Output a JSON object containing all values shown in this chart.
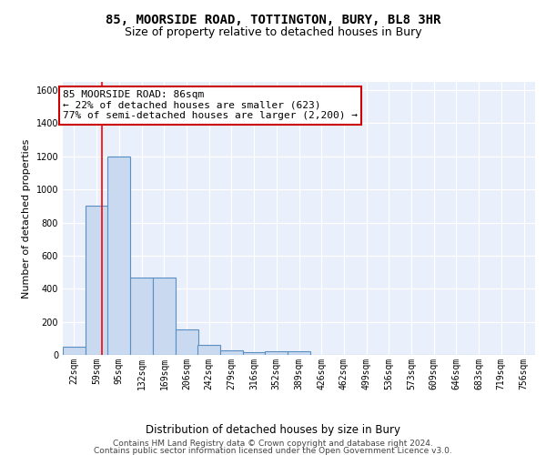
{
  "title1": "85, MOORSIDE ROAD, TOTTINGTON, BURY, BL8 3HR",
  "title2": "Size of property relative to detached houses in Bury",
  "xlabel": "Distribution of detached houses by size in Bury",
  "ylabel": "Number of detached properties",
  "categories": [
    "22sqm",
    "59sqm",
    "95sqm",
    "132sqm",
    "169sqm",
    "206sqm",
    "242sqm",
    "279sqm",
    "316sqm",
    "352sqm",
    "389sqm",
    "426sqm",
    "462sqm",
    "499sqm",
    "536sqm",
    "573sqm",
    "609sqm",
    "646sqm",
    "683sqm",
    "719sqm",
    "756sqm"
  ],
  "bin_edges": [
    22,
    59,
    95,
    132,
    169,
    206,
    242,
    279,
    316,
    352,
    389,
    426,
    462,
    499,
    536,
    573,
    609,
    646,
    683,
    719,
    756
  ],
  "bin_width": 37,
  "values": [
    50,
    900,
    1200,
    470,
    470,
    155,
    60,
    30,
    15,
    20,
    20,
    0,
    0,
    0,
    0,
    0,
    0,
    0,
    0,
    0,
    0
  ],
  "bar_color": "#c9d9ef",
  "bar_edge_color": "#5a8fc3",
  "bar_linewidth": 0.8,
  "red_line_x": 86,
  "ylim": [
    0,
    1650
  ],
  "yticks": [
    0,
    200,
    400,
    600,
    800,
    1000,
    1200,
    1400,
    1600
  ],
  "background_color": "#eaf0fb",
  "grid_color": "#ffffff",
  "annotation_text": "85 MOORSIDE ROAD: 86sqm\n← 22% of detached houses are smaller (623)\n77% of semi-detached houses are larger (2,200) →",
  "annotation_box_color": "#ffffff",
  "annotation_box_edge": "#cc0000",
  "footer1": "Contains HM Land Registry data © Crown copyright and database right 2024.",
  "footer2": "Contains public sector information licensed under the Open Government Licence v3.0.",
  "title1_fontsize": 10,
  "title2_fontsize": 9,
  "xlabel_fontsize": 8.5,
  "ylabel_fontsize": 8,
  "tick_fontsize": 7,
  "annotation_fontsize": 8,
  "footer_fontsize": 6.5
}
